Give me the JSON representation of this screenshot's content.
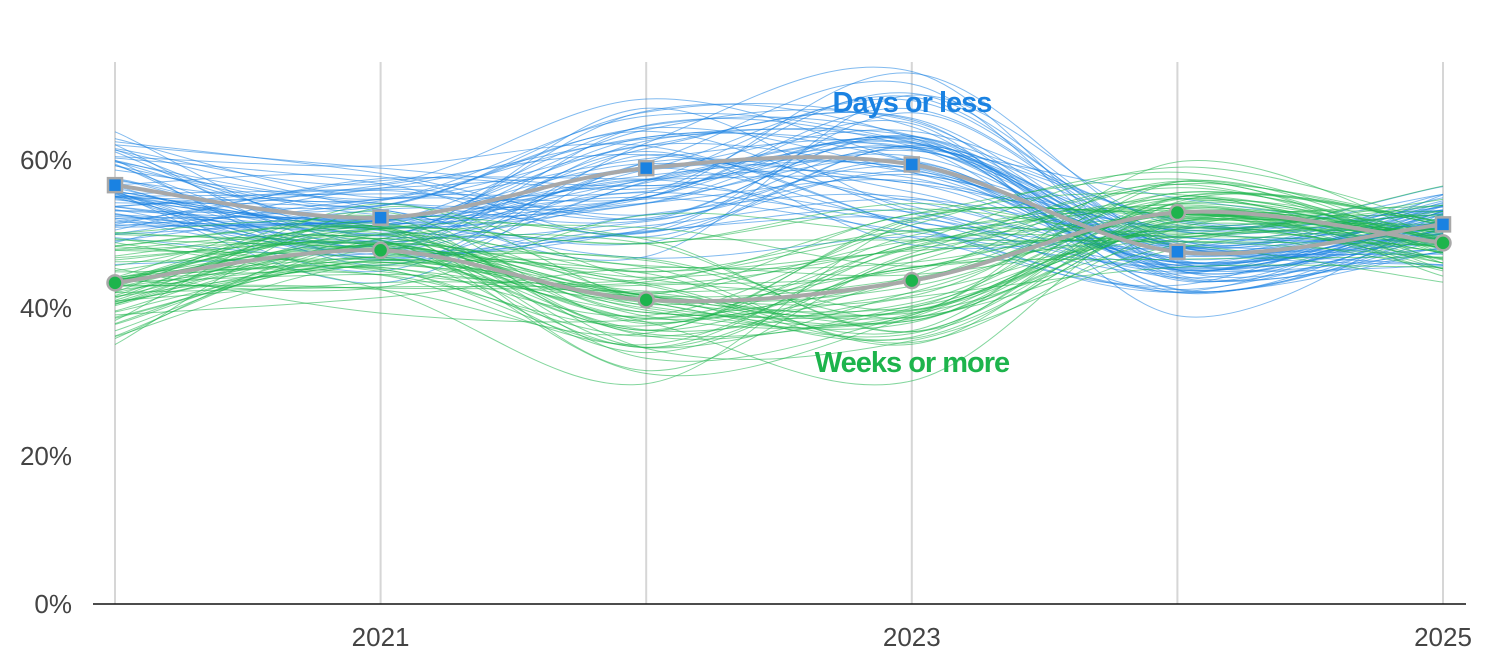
{
  "chart_data": {
    "type": "line",
    "x": [
      2020,
      2021,
      2022,
      2023,
      2024,
      2025
    ],
    "xtick_labels": [
      "2021",
      "2023",
      "2025"
    ],
    "xtick_values": [
      2021,
      2023,
      2025
    ],
    "ylim": [
      0,
      70
    ],
    "ytick_labels": [
      "0%",
      "20%",
      "40%",
      "60%"
    ],
    "ytick_values": [
      0,
      20,
      40,
      60
    ],
    "grid": "vertical lines at each year",
    "series": [
      {
        "name": "Days or less",
        "color": "#1a82e2",
        "marker": "square",
        "values": [
          56.6,
          52.2,
          58.9,
          59.4,
          47.6,
          51.3
        ]
      },
      {
        "name": "Weeks or more",
        "color": "#1db44c",
        "marker": "circle",
        "values": [
          43.4,
          47.8,
          41.1,
          43.7,
          52.9,
          48.8
        ]
      }
    ],
    "median_line_color": "#a8a8a8",
    "note": "faint background lines show many simulated draws around each series"
  }
}
